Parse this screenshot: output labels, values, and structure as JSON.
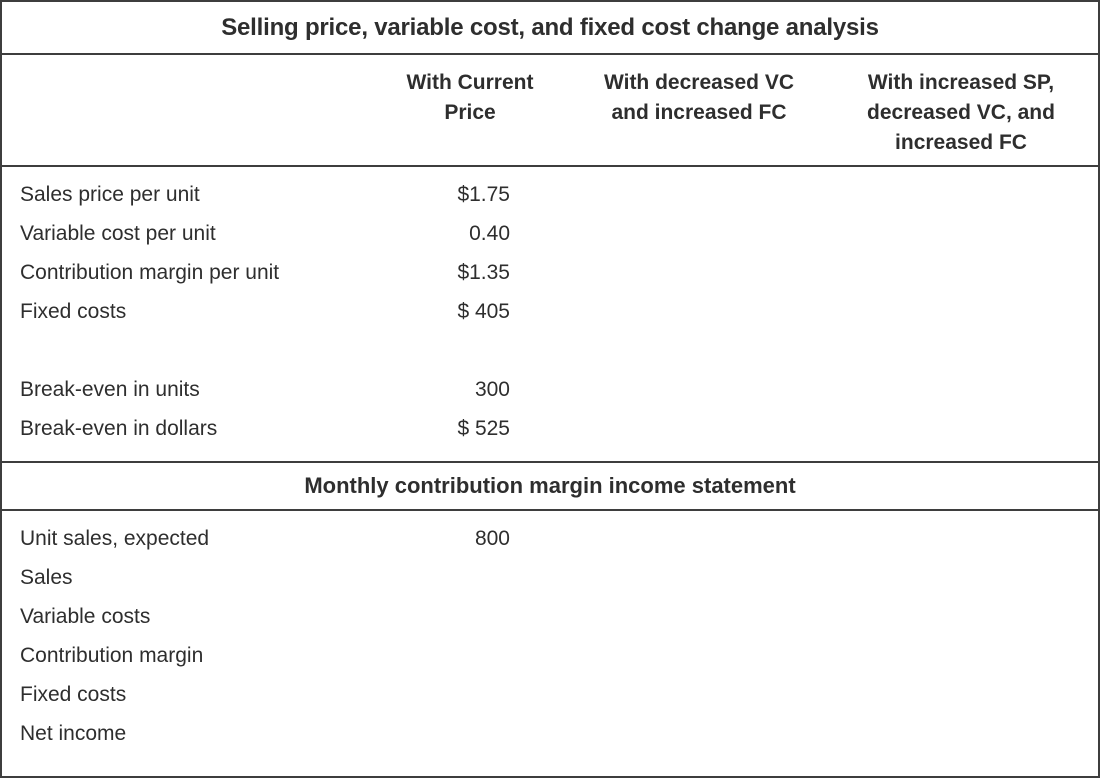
{
  "worksheet": {
    "title": "Selling price, variable cost, and fixed cost change analysis",
    "columns": [
      {
        "label": ""
      },
      {
        "label": "With Current\nPrice"
      },
      {
        "label": "With decreased VC\nand increased FC"
      },
      {
        "label": "With increased SP,\ndecreased VC, and\nincreased FC"
      }
    ],
    "analysis": {
      "rows": [
        {
          "label": "Sales price per unit",
          "values": [
            "$1.75",
            "",
            ""
          ]
        },
        {
          "label": "Variable cost per unit",
          "values": [
            "0.40",
            "",
            ""
          ]
        },
        {
          "label": "Contribution margin per unit",
          "values": [
            "$1.35",
            "",
            ""
          ]
        },
        {
          "label": "Fixed costs",
          "values": [
            "$ 405",
            "",
            ""
          ]
        },
        {
          "label": "",
          "values": [
            "",
            "",
            ""
          ]
        },
        {
          "label": "Break-even in units",
          "values": [
            "300",
            "",
            ""
          ]
        },
        {
          "label": "Break-even in dollars",
          "values": [
            "$ 525",
            "",
            ""
          ]
        }
      ]
    },
    "income_statement": {
      "title": "Monthly contribution margin income statement",
      "rows": [
        {
          "label": "Unit sales, expected",
          "values": [
            "800",
            "",
            ""
          ]
        },
        {
          "label": "Sales",
          "values": [
            "",
            "",
            ""
          ]
        },
        {
          "label": "Variable costs",
          "values": [
            "",
            "",
            ""
          ]
        },
        {
          "label": "Contribution margin",
          "values": [
            "",
            "",
            ""
          ]
        },
        {
          "label": "Fixed costs",
          "values": [
            "",
            "",
            ""
          ]
        },
        {
          "label": "Net income",
          "values": [
            "",
            "",
            ""
          ]
        }
      ]
    }
  },
  "colors": {
    "border": "#3e3e3e",
    "text": "#2e2e2e",
    "background": "#ffffff"
  }
}
